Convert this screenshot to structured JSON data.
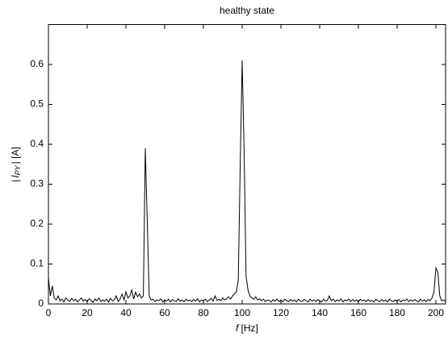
{
  "chart_data": {
    "type": "line",
    "title": "healthy state",
    "xlabel": [
      "f",
      "[Hz]"
    ],
    "ylabel": [
      "|",
      "I",
      "PY",
      "| [A]"
    ],
    "color": "#000000",
    "xlim": [
      0,
      205
    ],
    "ylim": [
      0,
      0.7
    ],
    "xticks": [
      0,
      20,
      40,
      60,
      80,
      100,
      120,
      140,
      160,
      180,
      200
    ],
    "yticks": [
      0,
      0.1,
      0.2,
      0.3,
      0.4,
      0.5,
      0.6
    ],
    "x": [
      0,
      1,
      2,
      3,
      4,
      5,
      6,
      7,
      8,
      9,
      10,
      11,
      12,
      13,
      14,
      15,
      16,
      17,
      18,
      19,
      20,
      21,
      22,
      23,
      24,
      25,
      26,
      27,
      28,
      29,
      30,
      31,
      32,
      33,
      34,
      35,
      36,
      37,
      38,
      39,
      40,
      41,
      42,
      43,
      44,
      45,
      46,
      47,
      48,
      49,
      50,
      51,
      52,
      53,
      54,
      55,
      56,
      57,
      58,
      59,
      60,
      61,
      62,
      63,
      64,
      65,
      66,
      67,
      68,
      69,
      70,
      71,
      72,
      73,
      74,
      75,
      76,
      77,
      78,
      79,
      80,
      81,
      82,
      83,
      84,
      85,
      86,
      87,
      88,
      89,
      90,
      91,
      92,
      93,
      94,
      95,
      96,
      97,
      98,
      99,
      100,
      101,
      102,
      103,
      104,
      105,
      106,
      107,
      108,
      109,
      110,
      111,
      112,
      113,
      114,
      115,
      116,
      117,
      118,
      119,
      120,
      121,
      122,
      123,
      124,
      125,
      126,
      127,
      128,
      129,
      130,
      131,
      132,
      133,
      134,
      135,
      136,
      137,
      138,
      139,
      140,
      141,
      142,
      143,
      144,
      145,
      146,
      147,
      148,
      149,
      150,
      151,
      152,
      153,
      154,
      155,
      156,
      157,
      158,
      159,
      160,
      161,
      162,
      163,
      164,
      165,
      166,
      167,
      168,
      169,
      170,
      171,
      172,
      173,
      174,
      175,
      176,
      177,
      178,
      179,
      180,
      181,
      182,
      183,
      184,
      185,
      186,
      187,
      188,
      189,
      190,
      191,
      192,
      193,
      194,
      195,
      196,
      197,
      198,
      199,
      200,
      201,
      202,
      203,
      204,
      205
    ],
    "values": [
      0.065,
      0.02,
      0.045,
      0.015,
      0.01,
      0.02,
      0.008,
      0.012,
      0.005,
      0.015,
      0.01,
      0.006,
      0.014,
      0.008,
      0.012,
      0.005,
      0.01,
      0.015,
      0.007,
      0.011,
      0.006,
      0.013,
      0.009,
      0.004,
      0.012,
      0.008,
      0.015,
      0.006,
      0.01,
      0.007,
      0.012,
      0.005,
      0.014,
      0.008,
      0.01,
      0.02,
      0.006,
      0.012,
      0.025,
      0.01,
      0.03,
      0.015,
      0.02,
      0.035,
      0.012,
      0.03,
      0.018,
      0.025,
      0.015,
      0.02,
      0.39,
      0.21,
      0.02,
      0.01,
      0.012,
      0.006,
      0.01,
      0.008,
      0.013,
      0.005,
      0.01,
      0.007,
      0.012,
      0.005,
      0.011,
      0.008,
      0.006,
      0.013,
      0.007,
      0.01,
      0.005,
      0.012,
      0.008,
      0.01,
      0.006,
      0.011,
      0.007,
      0.013,
      0.005,
      0.01,
      0.008,
      0.012,
      0.006,
      0.01,
      0.014,
      0.007,
      0.02,
      0.009,
      0.012,
      0.008,
      0.015,
      0.01,
      0.013,
      0.018,
      0.012,
      0.02,
      0.025,
      0.03,
      0.06,
      0.35,
      0.61,
      0.385,
      0.07,
      0.035,
      0.02,
      0.015,
      0.012,
      0.018,
      0.01,
      0.013,
      0.008,
      0.012,
      0.006,
      0.01,
      0.009,
      0.005,
      0.011,
      0.007,
      0.012,
      0.006,
      0.01,
      0.005,
      0.012,
      0.008,
      0.006,
      0.011,
      0.007,
      0.01,
      0.005,
      0.012,
      0.008,
      0.006,
      0.011,
      0.009,
      0.005,
      0.012,
      0.007,
      0.01,
      0.006,
      0.011,
      0.008,
      0.005,
      0.012,
      0.007,
      0.01,
      0.02,
      0.008,
      0.012,
      0.006,
      0.01,
      0.007,
      0.013,
      0.005,
      0.01,
      0.008,
      0.012,
      0.006,
      0.011,
      0.007,
      0.01,
      0.005,
      0.012,
      0.008,
      0.01,
      0.006,
      0.011,
      0.007,
      0.009,
      0.005,
      0.012,
      0.008,
      0.006,
      0.011,
      0.007,
      0.01,
      0.005,
      0.012,
      0.008,
      0.006,
      0.01,
      0.007,
      0.011,
      0.005,
      0.01,
      0.008,
      0.012,
      0.006,
      0.01,
      0.007,
      0.011,
      0.008,
      0.005,
      0.012,
      0.007,
      0.01,
      0.006,
      0.011,
      0.008,
      0.015,
      0.03,
      0.09,
      0.08,
      0.02,
      0.008,
      0.01,
      0.006
    ]
  }
}
